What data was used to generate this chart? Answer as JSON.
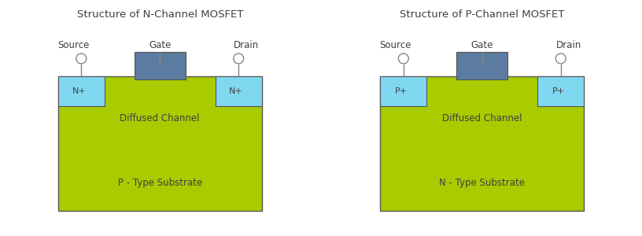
{
  "title_n": "Structure of N-Channel MOSFET",
  "title_p": "Structure of P-Channel MOSFET",
  "bg_color": "#ffffff",
  "substrate_color": "#a8cc00",
  "gate_color": "#5b7ba0",
  "diffusion_color": "#80d8f0",
  "text_color": "#404040",
  "label_color": "#404040",
  "title_fontsize": 9.5,
  "label_fontsize": 8.5,
  "body_fontsize": 8.5,
  "small_fontsize": 8.0,
  "n_channel": {
    "source_label": "Source",
    "gate_label": "Gate",
    "drain_label": "Drain",
    "left_diff_label": "N+",
    "right_diff_label": "N+",
    "channel_label": "Diffused Channel",
    "substrate_label": "P - Type Substrate"
  },
  "p_channel": {
    "source_label": "Source",
    "gate_label": "Gate",
    "drain_label": "Drain",
    "left_diff_label": "P+",
    "right_diff_label": "P+",
    "channel_label": "Diffused Channel",
    "substrate_label": "N - Type Substrate"
  }
}
